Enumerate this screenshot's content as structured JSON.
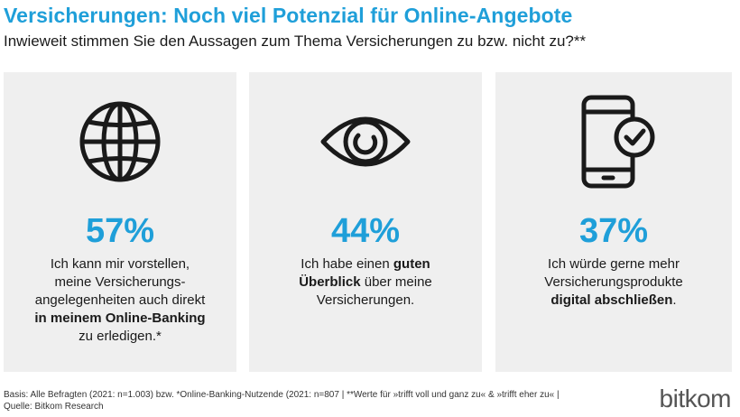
{
  "header": {
    "title": "Versicherungen: Noch viel Potenzial für Online-Angebote",
    "subtitle": "Inwieweit stimmen Sie den Aussagen zum Thema Versicherungen zu bzw. nicht zu?**"
  },
  "cards": [
    {
      "icon": "globe-icon",
      "percent": "57%",
      "text_1": "Ich kann mir vorstellen,",
      "text_2": "meine Versicherungs-",
      "text_3": "angelegenheiten auch direkt",
      "text_bold": "in meinem Online-Banking",
      "text_4": "zu erledigen.*"
    },
    {
      "icon": "eye-icon",
      "percent": "44%",
      "text_1": "Ich habe einen",
      "text_bold_1": "guten",
      "text_bold_2": "Überblick",
      "text_2": "über meine",
      "text_3": "Versicherungen."
    },
    {
      "icon": "smartphone-check-icon",
      "percent": "37%",
      "text_1": "Ich würde gerne mehr",
      "text_2": "Versicherungsprodukte",
      "text_bold": "digital abschließen",
      "text_3": "."
    }
  ],
  "footer": {
    "basis": "Basis: Alle Befragten (2021: n=1.003) bzw. *Online-Banking-Nutzende (2021: n=807 | **Werte für »trifft voll und ganz zu« & »trifft eher zu« |",
    "source": "Quelle: Bitkom Research"
  },
  "logo": {
    "text": "bitkom"
  },
  "colors": {
    "accent": "#1f9fd9",
    "card_background": "#efefef"
  }
}
